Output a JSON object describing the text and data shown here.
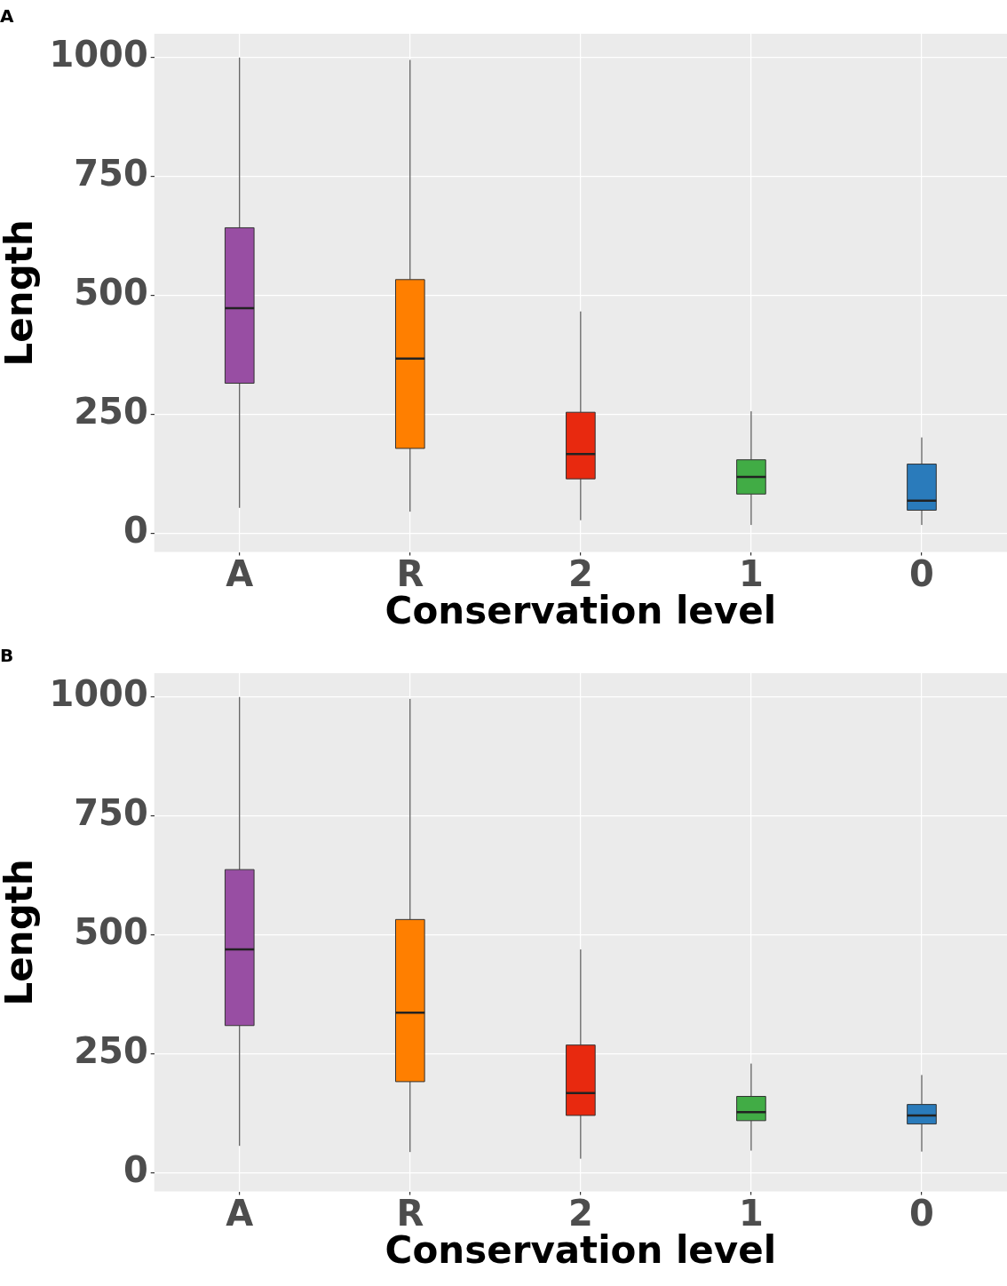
{
  "chart_data": [
    {
      "type": "box",
      "title": "A",
      "xlabel": "Conservation level",
      "ylabel": "Length",
      "categories": [
        "A",
        "R",
        "2",
        "1",
        "0"
      ],
      "colors": [
        "#984ea3",
        "#ff7f00",
        "#e8290f",
        "#41ac45",
        "#2a7bbb"
      ],
      "boxes": [
        {
          "low": 53,
          "q1": 315,
          "median": 473,
          "q3": 642,
          "high": 1000
        },
        {
          "low": 45,
          "q1": 178,
          "median": 367,
          "q3": 533,
          "high": 995
        },
        {
          "low": 27,
          "q1": 114,
          "median": 166,
          "q3": 254,
          "high": 466
        },
        {
          "low": 17,
          "q1": 82,
          "median": 118,
          "q3": 154,
          "high": 256
        },
        {
          "low": 17,
          "q1": 48,
          "median": 68,
          "q3": 145,
          "high": 201
        }
      ],
      "ylim": [
        -40,
        1050
      ],
      "yticks": [
        0,
        250,
        500,
        750,
        1000
      ],
      "grid": true,
      "legend": false
    },
    {
      "type": "box",
      "title": "B",
      "xlabel": "Conservation level",
      "ylabel": "Length",
      "categories": [
        "A",
        "R",
        "2",
        "1",
        "0"
      ],
      "colors": [
        "#984ea3",
        "#ff7f00",
        "#e8290f",
        "#41ac45",
        "#2a7bbb"
      ],
      "boxes": [
        {
          "low": 56,
          "q1": 309,
          "median": 469,
          "q3": 637,
          "high": 1000
        },
        {
          "low": 43,
          "q1": 191,
          "median": 336,
          "q3": 532,
          "high": 996
        },
        {
          "low": 29,
          "q1": 120,
          "median": 167,
          "q3": 268,
          "high": 469
        },
        {
          "low": 46,
          "q1": 109,
          "median": 127,
          "q3": 160,
          "high": 229
        },
        {
          "low": 44,
          "q1": 102,
          "median": 120,
          "q3": 143,
          "high": 205
        }
      ],
      "ylim": [
        -40,
        1050
      ],
      "yticks": [
        0,
        250,
        500,
        750,
        1000
      ],
      "grid": true,
      "legend": false
    }
  ]
}
